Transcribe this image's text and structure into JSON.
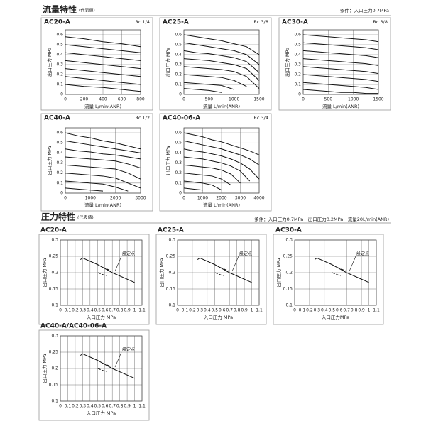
{
  "sections": [
    {
      "title": "流量特性",
      "note": "(代表値)",
      "condition": "条件：入口圧力0.7MPa"
    },
    {
      "title": "圧力特性",
      "note": "(代表値)",
      "condition": "条件：入口圧力0.7MPa　出口圧力0.2MPa　流量20L/min(ANR)"
    }
  ],
  "chart_data": [
    {
      "type": "line",
      "title": "AC20-A",
      "subtitle": "Rc 1/4",
      "xlabel": "流量 L/min(ANR)",
      "ylabel": "出口圧力 MPa",
      "grid": true,
      "color": "#111111",
      "x": [
        0,
        100,
        200,
        400,
        600,
        800
      ],
      "xlim": [
        0,
        800
      ],
      "xticks": [
        0,
        200,
        400,
        600,
        800
      ],
      "ylim": [
        0,
        0.65
      ],
      "yticks": [
        0,
        0.1,
        0.2,
        0.3,
        0.4,
        0.5,
        0.6
      ],
      "series": [
        {
          "values": [
            0.58,
            0.57,
            0.56,
            0.53,
            0.51,
            0.48
          ]
        },
        {
          "values": [
            0.5,
            0.49,
            0.48,
            0.46,
            0.44,
            0.42
          ]
        },
        {
          "values": [
            0.42,
            0.41,
            0.4,
            0.38,
            0.36,
            0.34
          ]
        },
        {
          "values": [
            0.34,
            0.33,
            0.32,
            0.3,
            0.28,
            0.26
          ]
        },
        {
          "values": [
            0.26,
            0.25,
            0.24,
            0.22,
            0.2,
            0.18
          ]
        },
        {
          "values": [
            0.18,
            0.17,
            0.16,
            0.14,
            0.12,
            0.1
          ]
        },
        {
          "values": [
            0.1,
            0.09,
            0.08,
            0.07,
            0.05,
            0.03
          ]
        }
      ]
    },
    {
      "type": "line",
      "title": "AC25-A",
      "subtitle": "Rc 3/8",
      "xlabel": "流量 L/min(ANR)",
      "ylabel": "出口圧力 MPa",
      "grid": true,
      "color": "#111111",
      "x": [
        0,
        250,
        500,
        750,
        1000,
        1250,
        1500
      ],
      "xlim": [
        0,
        1500
      ],
      "xticks": [
        0,
        500,
        1000,
        1500
      ],
      "ylim": [
        0,
        0.65
      ],
      "yticks": [
        0,
        0.1,
        0.2,
        0.3,
        0.4,
        0.5,
        0.6
      ],
      "series": [
        {
          "values": [
            0.6,
            0.58,
            0.56,
            0.54,
            0.51,
            0.48,
            0.4
          ]
        },
        {
          "values": [
            0.52,
            0.5,
            0.48,
            0.46,
            0.44,
            0.4,
            0.3
          ]
        },
        {
          "values": [
            0.44,
            0.42,
            0.41,
            0.39,
            0.37,
            0.33,
            0.22
          ]
        },
        {
          "values": [
            0.36,
            0.35,
            0.34,
            0.32,
            0.3,
            0.26,
            0.14
          ]
        },
        {
          "values": [
            0.28,
            0.27,
            0.26,
            0.25,
            0.23,
            0.18,
            0.06
          ]
        },
        {
          "values": [
            0.2,
            0.19,
            0.18,
            0.17,
            0.14,
            0.08,
            null
          ]
        },
        {
          "values": [
            0.12,
            0.11,
            0.1,
            0.09,
            0.05,
            null,
            null
          ]
        },
        {
          "values": [
            0.06,
            0.05,
            0.04,
            0.02,
            null,
            null,
            null
          ]
        }
      ]
    },
    {
      "type": "line",
      "title": "AC30-A",
      "subtitle": "Rc 3/8",
      "xlabel": "流量 L/min(ANR)",
      "ylabel": "出口圧力 MPa",
      "grid": true,
      "color": "#111111",
      "x": [
        0,
        250,
        500,
        750,
        1000,
        1250,
        1500
      ],
      "xlim": [
        0,
        1500
      ],
      "xticks": [
        0,
        500,
        1000,
        1500
      ],
      "ylim": [
        0,
        0.65
      ],
      "yticks": [
        0,
        0.1,
        0.2,
        0.3,
        0.4,
        0.5,
        0.6
      ],
      "series": [
        {
          "values": [
            0.6,
            0.59,
            0.58,
            0.57,
            0.56,
            0.55,
            0.53
          ]
        },
        {
          "values": [
            0.52,
            0.51,
            0.5,
            0.49,
            0.48,
            0.47,
            0.45
          ]
        },
        {
          "values": [
            0.44,
            0.43,
            0.42,
            0.41,
            0.4,
            0.39,
            0.37
          ]
        },
        {
          "values": [
            0.36,
            0.35,
            0.34,
            0.33,
            0.32,
            0.31,
            0.29
          ]
        },
        {
          "values": [
            0.28,
            0.27,
            0.26,
            0.25,
            0.24,
            0.23,
            0.21
          ]
        },
        {
          "values": [
            0.2,
            0.19,
            0.18,
            0.17,
            0.16,
            0.15,
            0.13
          ]
        },
        {
          "values": [
            0.12,
            0.11,
            0.1,
            0.09,
            0.08,
            0.07,
            0.05
          ]
        },
        {
          "values": [
            0.05,
            0.04,
            0.03,
            0.02,
            0.02,
            0.01,
            0.01
          ]
        }
      ]
    },
    {
      "type": "line",
      "title": "AC40-A",
      "subtitle": "Rc 1/2",
      "xlabel": "流量 L/min(ANR)",
      "ylabel": "出口圧力 MPa",
      "grid": true,
      "color": "#111111",
      "x": [
        0,
        500,
        1000,
        1500,
        2000,
        2500,
        3000
      ],
      "xlim": [
        0,
        3000
      ],
      "xticks": [
        0,
        1000,
        2000,
        3000
      ],
      "ylim": [
        0,
        0.65
      ],
      "yticks": [
        0,
        0.1,
        0.2,
        0.3,
        0.4,
        0.5,
        0.6
      ],
      "series": [
        {
          "values": [
            0.6,
            0.57,
            0.55,
            0.52,
            0.5,
            0.47,
            0.44
          ]
        },
        {
          "values": [
            0.52,
            0.5,
            0.48,
            0.46,
            0.44,
            0.42,
            0.4
          ]
        },
        {
          "values": [
            0.44,
            0.42,
            0.41,
            0.39,
            0.38,
            0.36,
            0.34
          ]
        },
        {
          "values": [
            0.36,
            0.35,
            0.34,
            0.33,
            0.32,
            0.29,
            0.25
          ]
        },
        {
          "values": [
            0.28,
            0.27,
            0.26,
            0.25,
            0.24,
            0.2,
            0.14
          ]
        },
        {
          "values": [
            0.2,
            0.19,
            0.18,
            0.17,
            0.15,
            0.1,
            0.05
          ]
        },
        {
          "values": [
            0.12,
            0.11,
            0.1,
            0.09,
            0.06,
            0.02,
            null
          ]
        },
        {
          "values": [
            0.05,
            0.04,
            0.03,
            0.02,
            null,
            null,
            null
          ]
        }
      ]
    },
    {
      "type": "line",
      "title": "AC40-06-A",
      "subtitle": "Rc 3/4",
      "xlabel": "流量 L/min(ANR)",
      "ylabel": "出口圧力 MPa",
      "grid": true,
      "color": "#111111",
      "x": [
        0,
        500,
        1000,
        1500,
        2000,
        2500,
        3000,
        3500,
        4000
      ],
      "xlim": [
        0,
        4000
      ],
      "xticks": [
        0,
        1000,
        2000,
        3000,
        4000
      ],
      "ylim": [
        0,
        0.65
      ],
      "yticks": [
        0,
        0.1,
        0.2,
        0.3,
        0.4,
        0.5,
        0.6
      ],
      "series": [
        {
          "values": [
            0.6,
            0.58,
            0.56,
            0.53,
            0.51,
            0.48,
            0.45,
            0.42,
            0.38
          ]
        },
        {
          "values": [
            0.52,
            0.5,
            0.48,
            0.46,
            0.44,
            0.41,
            0.38,
            0.34,
            0.28
          ]
        },
        {
          "values": [
            0.44,
            0.42,
            0.41,
            0.39,
            0.37,
            0.34,
            0.3,
            0.24,
            0.14
          ]
        },
        {
          "values": [
            0.36,
            0.35,
            0.34,
            0.32,
            0.3,
            0.27,
            0.22,
            0.12,
            null
          ]
        },
        {
          "values": [
            0.28,
            0.27,
            0.26,
            0.25,
            0.23,
            0.19,
            0.1,
            null,
            null
          ]
        },
        {
          "values": [
            0.2,
            0.19,
            0.18,
            0.17,
            0.14,
            0.08,
            null,
            null,
            null
          ]
        },
        {
          "values": [
            0.12,
            0.11,
            0.1,
            0.08,
            0.03,
            null,
            null,
            null,
            null
          ]
        },
        {
          "values": [
            0.05,
            0.04,
            0.03,
            null,
            null,
            null,
            null,
            null,
            null
          ]
        }
      ]
    },
    {
      "type": "line",
      "title": "AC20-A",
      "xlabel": "入口圧力 MPa",
      "ylabel": "出口圧力 MPa",
      "annotation": "設定点",
      "grid": true,
      "color": "#111111",
      "x": [
        0.27,
        0.3,
        0.5,
        0.7,
        1.0
      ],
      "xlim": [
        0,
        1.1
      ],
      "xticks": [
        0,
        0.1,
        0.2,
        0.3,
        0.4,
        0.5,
        0.6,
        0.7,
        0.8,
        0.9,
        1,
        1.1
      ],
      "ylim": [
        0.1,
        0.3
      ],
      "yticks": [
        0.1,
        0.15,
        0.2,
        0.25,
        0.3
      ],
      "series": [
        {
          "values": [
            0.24,
            0.245,
            0.225,
            0.2,
            0.17
          ]
        }
      ]
    },
    {
      "type": "line",
      "title": "AC25-A",
      "xlabel": "入口圧力 MPa",
      "ylabel": "出口圧力 MPa",
      "annotation": "設定点",
      "grid": true,
      "color": "#111111",
      "x": [
        0.27,
        0.3,
        0.5,
        0.7,
        1.0
      ],
      "xlim": [
        0,
        1.1
      ],
      "xticks": [
        0,
        0.1,
        0.2,
        0.3,
        0.4,
        0.5,
        0.6,
        0.7,
        0.8,
        0.9,
        1,
        1.1
      ],
      "ylim": [
        0.1,
        0.3
      ],
      "yticks": [
        0.1,
        0.15,
        0.2,
        0.25,
        0.3
      ],
      "series": [
        {
          "values": [
            0.24,
            0.245,
            0.225,
            0.2,
            0.17
          ]
        }
      ]
    },
    {
      "type": "line",
      "title": "AC30-A",
      "xlabel": "入口圧力MPa",
      "ylabel": "出口圧力 MPa",
      "annotation": "設定点",
      "grid": true,
      "color": "#111111",
      "x": [
        0.27,
        0.3,
        0.5,
        0.7,
        1.0
      ],
      "xlim": [
        0,
        1.1
      ],
      "xticks": [
        0,
        0.1,
        0.2,
        0.3,
        0.4,
        0.5,
        0.6,
        0.7,
        0.8,
        0.9,
        1,
        1.1
      ],
      "ylim": [
        0.1,
        0.3
      ],
      "yticks": [
        0.1,
        0.15,
        0.2,
        0.25,
        0.3
      ],
      "series": [
        {
          "values": [
            0.24,
            0.245,
            0.225,
            0.2,
            0.17
          ]
        }
      ]
    },
    {
      "type": "line",
      "title": "AC40-A/AC40-06-A",
      "xlabel": "入口圧力 MPa",
      "ylabel": "出口圧力 MPa",
      "annotation": "設定点",
      "grid": true,
      "color": "#111111",
      "x": [
        0.27,
        0.3,
        0.5,
        0.7,
        1.0
      ],
      "xlim": [
        0,
        1.1
      ],
      "xticks": [
        0,
        0.1,
        0.2,
        0.3,
        0.4,
        0.5,
        0.6,
        0.7,
        0.8,
        0.9,
        1,
        1.1
      ],
      "ylim": [
        0.1,
        0.3
      ],
      "yticks": [
        0.1,
        0.15,
        0.2,
        0.25,
        0.3
      ],
      "series": [
        {
          "values": [
            0.24,
            0.245,
            0.225,
            0.2,
            0.17
          ]
        }
      ]
    }
  ]
}
